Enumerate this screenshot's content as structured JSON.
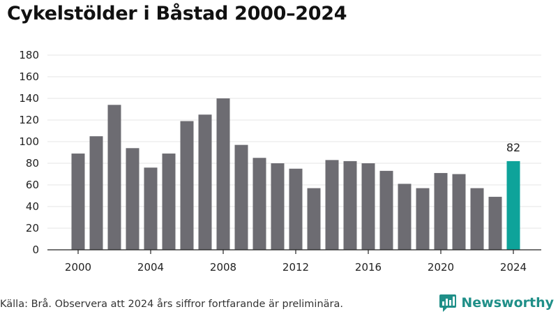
{
  "title": "Cykelstölder i Båstad 2000–2024",
  "source": "Källa: Brå. Observera att 2024 års siffror fortfarande är preliminära.",
  "brand": {
    "name": "Newsworthy",
    "icon": "newsworthy-logo-icon"
  },
  "colors": {
    "bar": "#6d6c72",
    "highlight": "#0ea39a",
    "grid": "#e6e6e6",
    "axis": "#222222"
  },
  "chart_data": {
    "type": "bar",
    "title": "Cykelstölder i Båstad 2000–2024",
    "xlabel": "",
    "ylabel": "",
    "categories": [
      2000,
      2001,
      2002,
      2003,
      2004,
      2005,
      2006,
      2007,
      2008,
      2009,
      2010,
      2011,
      2012,
      2013,
      2014,
      2015,
      2016,
      2017,
      2018,
      2019,
      2020,
      2021,
      2022,
      2023,
      2024
    ],
    "values": [
      89,
      105,
      134,
      94,
      76,
      89,
      119,
      125,
      140,
      97,
      85,
      80,
      75,
      57,
      83,
      82,
      80,
      73,
      61,
      57,
      71,
      70,
      57,
      49,
      82
    ],
    "x_tick_labels": [
      "2000",
      "2004",
      "2008",
      "2012",
      "2016",
      "2020",
      "2024"
    ],
    "ylim": [
      0,
      180
    ],
    "y_ticks": [
      0,
      20,
      40,
      60,
      80,
      100,
      120,
      140,
      160,
      180
    ],
    "highlight": {
      "category": 2024,
      "label": "82"
    },
    "grid": true,
    "legend": "none"
  }
}
